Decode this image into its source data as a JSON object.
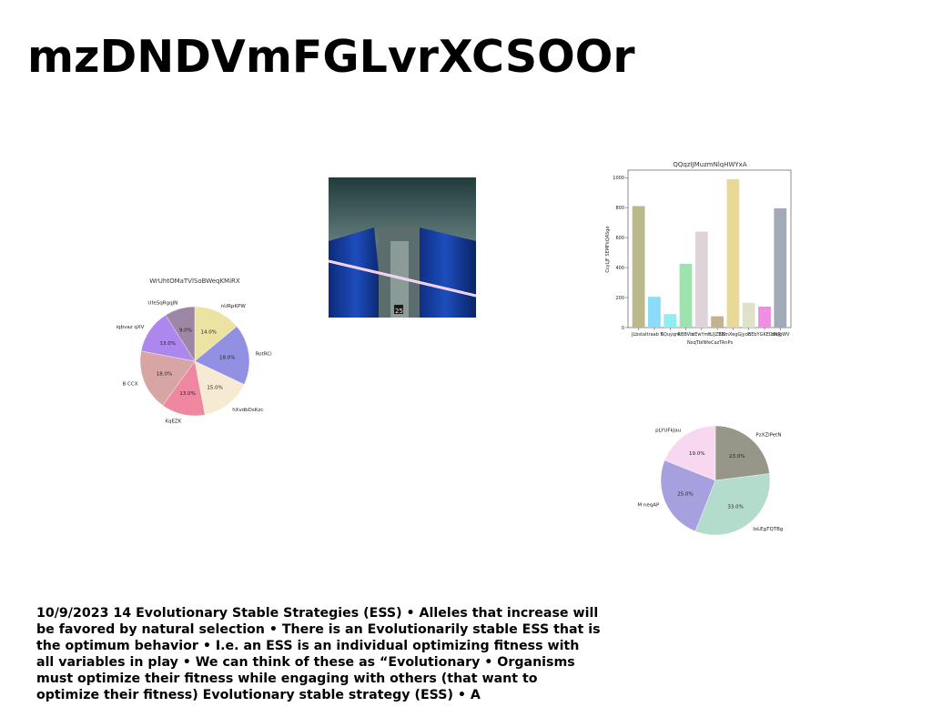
{
  "slide": {
    "title": "mzDNDVmFGLvrXCSOOr",
    "body_text": "10/9/2023 14 Evolutionary Stable Strategies (ESS) • Alleles that increase will be favored by natural selection • There is an Evolutionarily stable ESS that is the optimum behavior • I.e. an ESS is an individual optimizing fitness with all variables in play • We can think of these as “Evolutionary • Organisms must optimize their fitness while engaging with others (that want to optimize their fitness) Evolutionary stable strategy (ESS) • A",
    "photo": {
      "caption_number": "25"
    }
  },
  "chart_data": [
    {
      "type": "pie",
      "title": "WrUhtOMaTVlSoBWeqKMiRX",
      "labels": [
        "nURpKPW",
        "RotRCi",
        "hXvdbDsKzc",
        "KqEZK",
        "B CCX",
        "iqbvaz qXV",
        "UfeSqRgqJN"
      ],
      "values": [
        14.0,
        18.0,
        15.0,
        13.0,
        18.0,
        13.0,
        9.0
      ],
      "value_labels": [
        "14.0%",
        "18.0%",
        "15.0%",
        "13.0%",
        "18.0%",
        "13.0%",
        "9.0%"
      ],
      "colors": [
        "#ebe3a2",
        "#9190e3",
        "#f7ead2",
        "#ef87a0",
        "#d8a5a5",
        "#ae87ee",
        "#9e86a6"
      ],
      "start_angle": 90,
      "direction": "clockwise"
    },
    {
      "type": "bar",
      "title": "QQqzIJMuzmNlqHWYxA",
      "xlabel": "NxqTbINfeCazTAnPs",
      "ylabel": "CcyLJF SEMFkQASge",
      "categories": [
        "JLbsta",
        "ltraab fl",
        "SQuyqm",
        "RBBVbi",
        "xEwYmh",
        "tLIJZBZt",
        "EBmXegGjyc",
        "lo",
        "EEbYGKEDtNR",
        "ckqgWV"
      ],
      "values": [
        810,
        205,
        90,
        425,
        640,
        75,
        990,
        165,
        140,
        795
      ],
      "colors": [
        "#b9b98a",
        "#8adcfa",
        "#8eeef0",
        "#9de3af",
        "#ddd3d8",
        "#c4b38f",
        "#e8d998",
        "#e0e1cb",
        "#ef8ee3",
        "#a2a9b7"
      ],
      "ylim": [
        0,
        1050
      ],
      "yticks": [
        0,
        200,
        400,
        600,
        800,
        1000
      ]
    },
    {
      "type": "pie",
      "labels": [
        "PzXZlPetN",
        "loLEgTQTBg",
        "M neqAP",
        "pLYUFkJau"
      ],
      "values": [
        23.0,
        33.0,
        25.0,
        19.0
      ],
      "value_labels": [
        "23.0%",
        "33.0%",
        "25.0%",
        "19.0%"
      ],
      "colors": [
        "#979789",
        "#b4dccc",
        "#a6a0de",
        "#f8d8f0"
      ],
      "start_angle": 90,
      "direction": "clockwise"
    }
  ]
}
